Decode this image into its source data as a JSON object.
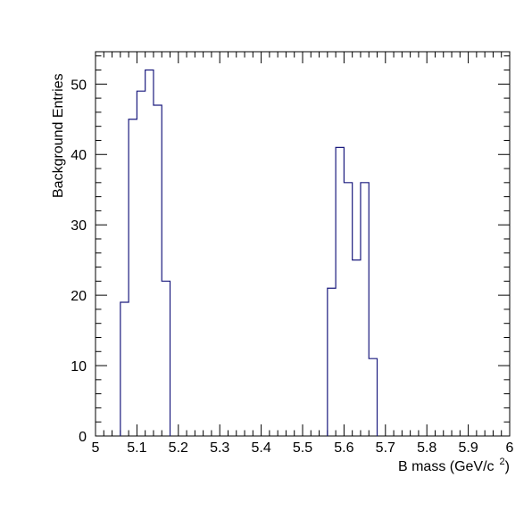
{
  "chart_data": {
    "type": "histogram",
    "xlabel": "B mass (GeV/c",
    "xlabel_sup": "2",
    "xlabel_close": ")",
    "ylabel": "Background Entries",
    "xlim": [
      5.0,
      6.0
    ],
    "ylim": [
      0,
      54.6
    ],
    "bin_width": 0.02,
    "x_tick_labels": [
      "5",
      "5.1",
      "5.2",
      "5.3",
      "5.4",
      "5.5",
      "5.6",
      "5.7",
      "5.8",
      "5.9",
      "6"
    ],
    "x_tick_values": [
      5.0,
      5.1,
      5.2,
      5.3,
      5.4,
      5.5,
      5.6,
      5.7,
      5.8,
      5.9,
      6.0
    ],
    "y_tick_labels": [
      "0",
      "10",
      "20",
      "30",
      "40",
      "50"
    ],
    "y_tick_values": [
      0,
      10,
      20,
      30,
      40,
      50
    ],
    "grid": false,
    "line_color": "#1a1a7e",
    "bins": [
      {
        "x": 5.06,
        "value": 19
      },
      {
        "x": 5.08,
        "value": 45
      },
      {
        "x": 5.1,
        "value": 49
      },
      {
        "x": 5.12,
        "value": 52
      },
      {
        "x": 5.14,
        "value": 47
      },
      {
        "x": 5.16,
        "value": 22
      },
      {
        "x": 5.56,
        "value": 21
      },
      {
        "x": 5.58,
        "value": 41
      },
      {
        "x": 5.6,
        "value": 36
      },
      {
        "x": 5.62,
        "value": 25
      },
      {
        "x": 5.64,
        "value": 36
      },
      {
        "x": 5.66,
        "value": 11
      }
    ]
  }
}
